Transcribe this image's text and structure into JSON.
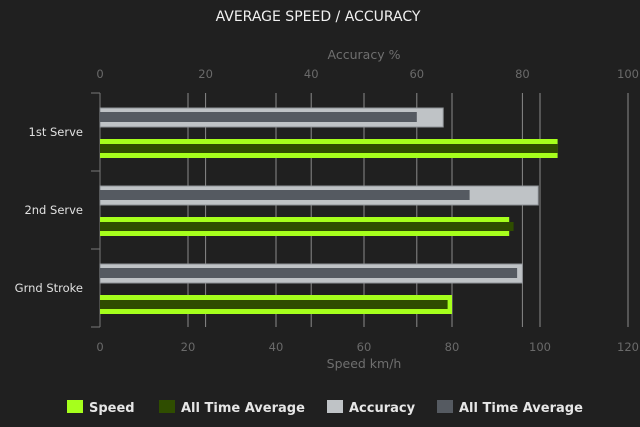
{
  "chart_data": {
    "type": "bar",
    "orientation": "horizontal",
    "title": "AVERAGE SPEED / ACCURACY",
    "categories": [
      "1st Serve",
      "2nd Serve",
      "Grnd Stroke"
    ],
    "x_axis_bottom": {
      "label": "Speed km/h",
      "range": [
        0,
        120
      ],
      "ticks": [
        0,
        20,
        40,
        60,
        80,
        100,
        120
      ]
    },
    "x_axis_top": {
      "label": "Accuracy %",
      "range": [
        0,
        100
      ],
      "ticks": [
        0,
        20,
        40,
        60,
        80,
        100
      ]
    },
    "grid": true,
    "legend_position": "bottom",
    "series": [
      {
        "name": "Speed",
        "axis": "bottom",
        "color": "#a6ff1c",
        "values": [
          104,
          93,
          80
        ]
      },
      {
        "name": "All Time Average",
        "axis": "bottom",
        "color": "#2f4d00",
        "values": [
          104,
          94,
          79
        ]
      },
      {
        "name": "Accuracy",
        "axis": "top",
        "color": "#bfc3c6",
        "values": [
          65,
          83,
          80
        ]
      },
      {
        "name": "All Time Average",
        "axis": "top",
        "color": "#555a61",
        "values": [
          60,
          70,
          79
        ]
      }
    ]
  }
}
